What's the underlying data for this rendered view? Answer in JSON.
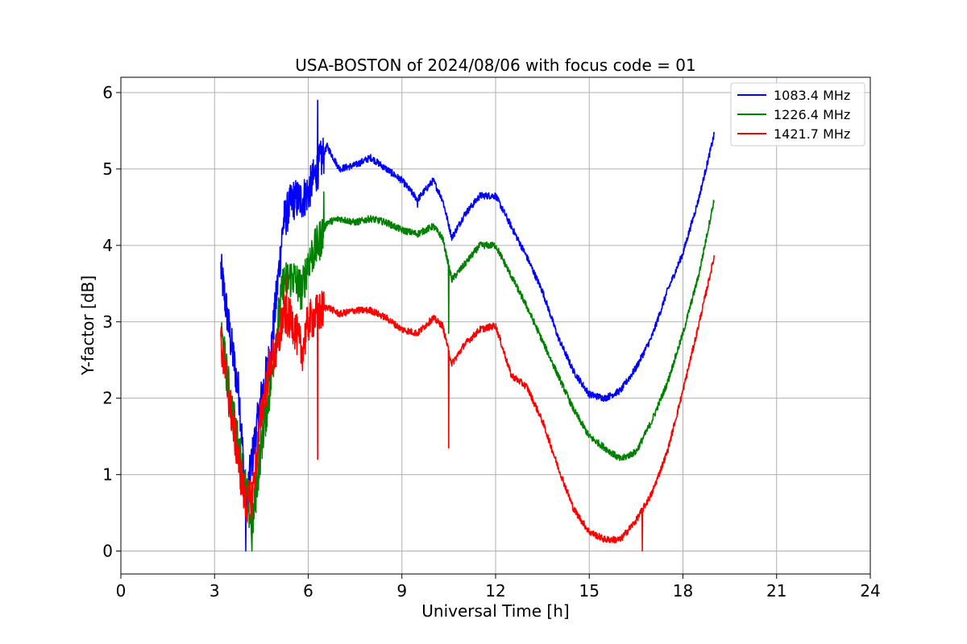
{
  "chart_data": {
    "type": "line",
    "title": "USA-BOSTON of 2024/08/06 with focus code = 01",
    "xlabel": "Universal Time [h]",
    "ylabel": "Y-factor [dB]",
    "xlim": [
      0,
      24
    ],
    "ylim": [
      -0.3,
      6.2
    ],
    "xticks": [
      0,
      3,
      6,
      9,
      12,
      15,
      18,
      21,
      24
    ],
    "yticks": [
      0,
      1,
      2,
      3,
      4,
      5,
      6
    ],
    "grid": true,
    "legend_position": "top-right",
    "series": [
      {
        "name": "1083.4 MHz",
        "color": "#0000ff",
        "points": [
          [
            3.2,
            3.7
          ],
          [
            3.5,
            2.8
          ],
          [
            3.8,
            2.0
          ],
          [
            4.0,
            0.6
          ],
          [
            4.2,
            1.2
          ],
          [
            4.5,
            2.0
          ],
          [
            4.8,
            2.6
          ],
          [
            5.0,
            3.4
          ],
          [
            5.2,
            4.3
          ],
          [
            5.5,
            4.6
          ],
          [
            5.8,
            4.6
          ],
          [
            6.0,
            4.7
          ],
          [
            6.3,
            5.0
          ],
          [
            6.6,
            5.3
          ],
          [
            7.0,
            5.0
          ],
          [
            7.5,
            5.05
          ],
          [
            8.0,
            5.15
          ],
          [
            8.5,
            5.0
          ],
          [
            9.0,
            4.85
          ],
          [
            9.5,
            4.6
          ],
          [
            10.0,
            4.85
          ],
          [
            10.3,
            4.6
          ],
          [
            10.6,
            4.1
          ],
          [
            11.0,
            4.4
          ],
          [
            11.5,
            4.65
          ],
          [
            12.0,
            4.65
          ],
          [
            12.5,
            4.25
          ],
          [
            13.0,
            3.85
          ],
          [
            13.5,
            3.4
          ],
          [
            14.0,
            2.8
          ],
          [
            14.5,
            2.35
          ],
          [
            15.0,
            2.05
          ],
          [
            15.5,
            2.0
          ],
          [
            16.0,
            2.1
          ],
          [
            16.5,
            2.4
          ],
          [
            17.0,
            2.8
          ],
          [
            17.5,
            3.4
          ],
          [
            18.0,
            3.9
          ],
          [
            18.5,
            4.6
          ],
          [
            19.0,
            5.45
          ]
        ],
        "spikes": [
          [
            6.3,
            5.9
          ],
          [
            4.0,
            0.0
          ],
          [
            9.5,
            4.5
          ]
        ]
      },
      {
        "name": "1226.4 MHz",
        "color": "#008000",
        "points": [
          [
            3.2,
            2.9
          ],
          [
            3.5,
            2.0
          ],
          [
            3.8,
            1.3
          ],
          [
            4.0,
            0.8
          ],
          [
            4.2,
            0.3
          ],
          [
            4.5,
            1.4
          ],
          [
            4.8,
            2.2
          ],
          [
            5.0,
            2.9
          ],
          [
            5.2,
            3.5
          ],
          [
            5.5,
            3.6
          ],
          [
            5.8,
            3.4
          ],
          [
            6.0,
            3.8
          ],
          [
            6.3,
            4.0
          ],
          [
            6.6,
            4.3
          ],
          [
            7.0,
            4.35
          ],
          [
            7.5,
            4.3
          ],
          [
            8.0,
            4.35
          ],
          [
            8.5,
            4.3
          ],
          [
            9.0,
            4.2
          ],
          [
            9.5,
            4.15
          ],
          [
            10.0,
            4.25
          ],
          [
            10.3,
            4.1
          ],
          [
            10.6,
            3.55
          ],
          [
            11.0,
            3.75
          ],
          [
            11.5,
            4.0
          ],
          [
            12.0,
            4.0
          ],
          [
            12.5,
            3.6
          ],
          [
            13.0,
            3.2
          ],
          [
            13.5,
            2.75
          ],
          [
            14.0,
            2.3
          ],
          [
            14.5,
            1.85
          ],
          [
            15.0,
            1.5
          ],
          [
            15.5,
            1.35
          ],
          [
            16.0,
            1.2
          ],
          [
            16.5,
            1.3
          ],
          [
            17.0,
            1.7
          ],
          [
            17.5,
            2.2
          ],
          [
            18.0,
            2.85
          ],
          [
            18.5,
            3.6
          ],
          [
            19.0,
            4.6
          ]
        ],
        "spikes": [
          [
            10.5,
            2.85
          ],
          [
            4.2,
            0.0
          ],
          [
            6.5,
            4.7
          ]
        ]
      },
      {
        "name": "1421.7 MHz",
        "color": "#ff0000",
        "points": [
          [
            3.2,
            2.7
          ],
          [
            3.5,
            1.9
          ],
          [
            3.8,
            1.1
          ],
          [
            4.0,
            0.6
          ],
          [
            4.2,
            0.7
          ],
          [
            4.5,
            1.8
          ],
          [
            4.8,
            2.5
          ],
          [
            5.0,
            2.6
          ],
          [
            5.2,
            3.1
          ],
          [
            5.5,
            3.0
          ],
          [
            5.8,
            2.6
          ],
          [
            6.0,
            3.0
          ],
          [
            6.3,
            3.1
          ],
          [
            6.6,
            3.2
          ],
          [
            7.0,
            3.1
          ],
          [
            7.5,
            3.15
          ],
          [
            8.0,
            3.15
          ],
          [
            8.5,
            3.05
          ],
          [
            9.0,
            2.9
          ],
          [
            9.5,
            2.85
          ],
          [
            10.0,
            3.05
          ],
          [
            10.3,
            2.95
          ],
          [
            10.6,
            2.45
          ],
          [
            11.0,
            2.7
          ],
          [
            11.5,
            2.9
          ],
          [
            12.0,
            2.95
          ],
          [
            12.5,
            2.3
          ],
          [
            13.0,
            2.15
          ],
          [
            13.5,
            1.7
          ],
          [
            14.0,
            1.1
          ],
          [
            14.5,
            0.55
          ],
          [
            15.0,
            0.25
          ],
          [
            15.5,
            0.15
          ],
          [
            16.0,
            0.15
          ],
          [
            16.5,
            0.4
          ],
          [
            17.0,
            0.75
          ],
          [
            17.5,
            1.3
          ],
          [
            18.0,
            2.1
          ],
          [
            18.5,
            2.95
          ],
          [
            19.0,
            3.85
          ]
        ],
        "spikes": [
          [
            6.3,
            1.2
          ],
          [
            10.5,
            1.35
          ],
          [
            16.7,
            0.0
          ],
          [
            5.3,
            3.6
          ]
        ]
      }
    ]
  }
}
